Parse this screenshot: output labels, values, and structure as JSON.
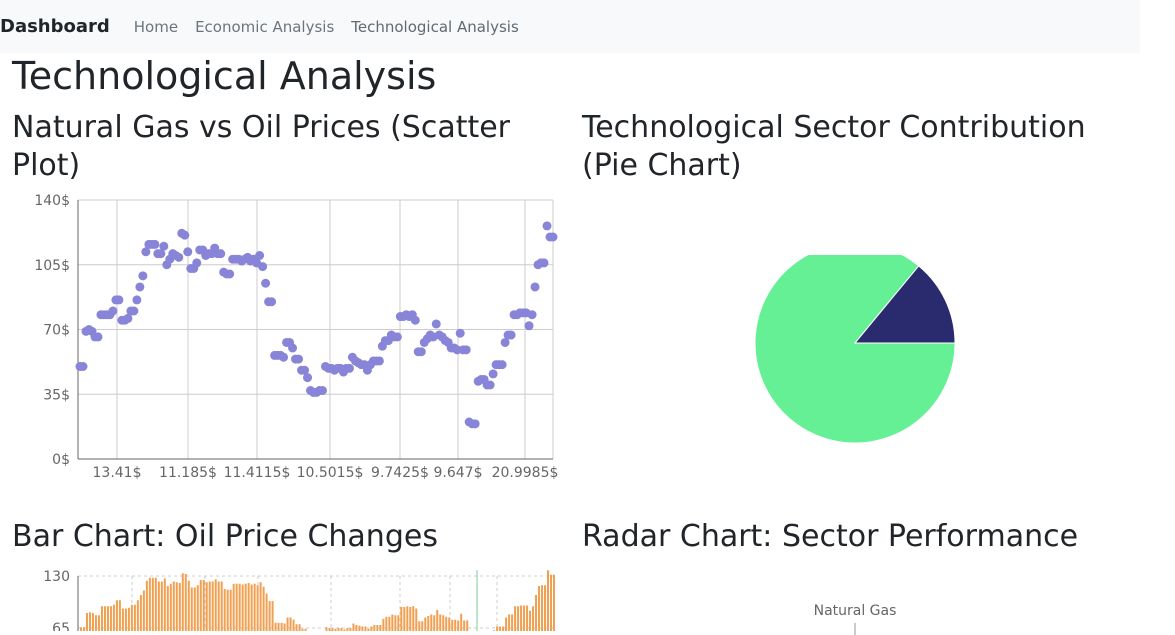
{
  "navbar": {
    "brand": "Dashboard",
    "links": [
      "Home",
      "Economic Analysis",
      "Technological Analysis"
    ]
  },
  "page_title": "Technological Analysis",
  "sections": {
    "scatter_title": "Natural Gas vs Oil Prices (Scatter Plot)",
    "pie_title": "Technological Sector Contribution (Pie Chart)",
    "bar_title": "Bar Chart: Oil Price Changes",
    "radar_title": "Radar Chart: Sector Performance"
  },
  "colors": {
    "scatter_point": "#8884d8",
    "pie_green": "#66f095",
    "pie_navy": "#2a2a6e",
    "bar": "#f0a050",
    "grid": "#cccccc"
  },
  "chart_data": [
    {
      "type": "scatter",
      "title": "Natural Gas vs Oil Prices (Scatter Plot)",
      "x_tick_labels": [
        "13.41$",
        "11.185$",
        "11.4115$",
        "10.5015$",
        "9.7425$",
        "9.647$",
        "20.9985$"
      ],
      "y_ticks": [
        0,
        35,
        70,
        105,
        140
      ],
      "y_tick_labels": [
        "0$",
        "35$",
        "70$",
        "105$",
        "140$"
      ],
      "ylim": [
        0,
        140
      ],
      "grid": true,
      "y_values": [
        50,
        50,
        69,
        70,
        69,
        66,
        66,
        78,
        78,
        78,
        78,
        80,
        86,
        86,
        75,
        75,
        76,
        80,
        80,
        86,
        93,
        99,
        112,
        116,
        116,
        116,
        111,
        111,
        115,
        105,
        108,
        111,
        110,
        109,
        122,
        121,
        112,
        103,
        103,
        106,
        113,
        113,
        110,
        111,
        111,
        114,
        111,
        111,
        101,
        100,
        100,
        108,
        108,
        108,
        107,
        108,
        109,
        107,
        108,
        106,
        110,
        104,
        95,
        85,
        85,
        56,
        56,
        56,
        55,
        63,
        63,
        60,
        54,
        54,
        48,
        48,
        44,
        37,
        36,
        36,
        37,
        37,
        50,
        49,
        49,
        48,
        49,
        49,
        47,
        49,
        49,
        55,
        53,
        52,
        51,
        51,
        48,
        51,
        53,
        53,
        53,
        61,
        64,
        64,
        67,
        66,
        66,
        77,
        77,
        78,
        77,
        78,
        75,
        58,
        58,
        63,
        65,
        67,
        66,
        73,
        67,
        66,
        64,
        63,
        60,
        60,
        59,
        68,
        59,
        59,
        20,
        19,
        19,
        42,
        43,
        43,
        40,
        40,
        46,
        51,
        51,
        51,
        63,
        67,
        67,
        78,
        78,
        79,
        79,
        79,
        72,
        78,
        93,
        105,
        106,
        106,
        126,
        120,
        120
      ]
    },
    {
      "type": "pie",
      "title": "Technological Sector Contribution (Pie Chart)",
      "values": [
        86,
        14
      ]
    },
    {
      "type": "bar",
      "title": "Bar Chart: Oil Price Changes",
      "y_tick_labels": [
        "130",
        "65"
      ],
      "ylim": [
        0,
        130
      ]
    },
    {
      "type": "radar",
      "title": "Radar Chart: Sector Performance",
      "axis_labels": [
        "Natural Gas"
      ]
    }
  ]
}
